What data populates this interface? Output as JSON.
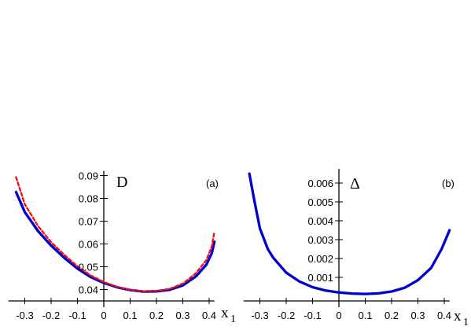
{
  "chart_data": [
    {
      "type": "line",
      "panel_label": "(a)",
      "ylabel": "D",
      "xlabel": "x",
      "xlabel_sub": "1",
      "xlim": [
        -0.35,
        0.45
      ],
      "ylim": [
        0.035,
        0.09
      ],
      "xticks": [
        -0.3,
        -0.2,
        -0.1,
        0,
        0.1,
        0.2,
        0.3,
        0.4
      ],
      "yticks": [
        0.04,
        0.05,
        0.06,
        0.07,
        0.08,
        0.09
      ],
      "series": [
        {
          "color": "#0000cc",
          "style": "solid",
          "x": [
            -0.333,
            -0.3,
            -0.25,
            -0.2,
            -0.15,
            -0.1,
            -0.05,
            0,
            0.05,
            0.1,
            0.15,
            0.2,
            0.25,
            0.3,
            0.35,
            0.39,
            0.41,
            0.42
          ],
          "y": [
            0.0828,
            0.074,
            0.0657,
            0.0593,
            0.0539,
            0.0492,
            0.0455,
            0.0429,
            0.041,
            0.0398,
            0.0391,
            0.0392,
            0.0399,
            0.0418,
            0.0458,
            0.051,
            0.056,
            0.061
          ]
        },
        {
          "color": "#ee1111",
          "style": "dashed",
          "x": [
            -0.333,
            -0.3,
            -0.25,
            -0.2,
            -0.15,
            -0.1,
            -0.05,
            0,
            0.05,
            0.1,
            0.15,
            0.2,
            0.25,
            0.3,
            0.35,
            0.39,
            0.41,
            0.42
          ],
          "y": [
            0.0893,
            0.0775,
            0.0679,
            0.0608,
            0.0552,
            0.0502,
            0.0462,
            0.0433,
            0.0412,
            0.0399,
            0.0392,
            0.0394,
            0.0403,
            0.0426,
            0.0472,
            0.053,
            0.059,
            0.0655
          ]
        }
      ]
    },
    {
      "type": "line",
      "panel_label": "(b)",
      "ylabel": "Δ",
      "xlabel": "x",
      "xlabel_sub": "1",
      "xlim": [
        -0.35,
        0.45
      ],
      "ylim": [
        0,
        0.0065
      ],
      "xticks": [
        -0.3,
        -0.2,
        -0.1,
        0,
        0.1,
        0.2,
        0.3,
        0.4
      ],
      "yticks": [
        0.001,
        0.002,
        0.003,
        0.004,
        0.005,
        0.006
      ],
      "series": [
        {
          "color": "#0000cc",
          "style": "solid",
          "x": [
            -0.34,
            -0.32,
            -0.3,
            -0.27,
            -0.25,
            -0.2,
            -0.15,
            -0.1,
            -0.05,
            0,
            0.05,
            0.1,
            0.15,
            0.2,
            0.25,
            0.3,
            0.35,
            0.39,
            0.42
          ],
          "y": [
            0.0065,
            0.005,
            0.0036,
            0.0025,
            0.00205,
            0.00125,
            0.00078,
            0.00048,
            0.0003,
            0.0002,
            0.00014,
            0.00012,
            0.00015,
            0.00025,
            0.00045,
            0.00085,
            0.0015,
            0.0025,
            0.0035
          ]
        }
      ]
    }
  ]
}
